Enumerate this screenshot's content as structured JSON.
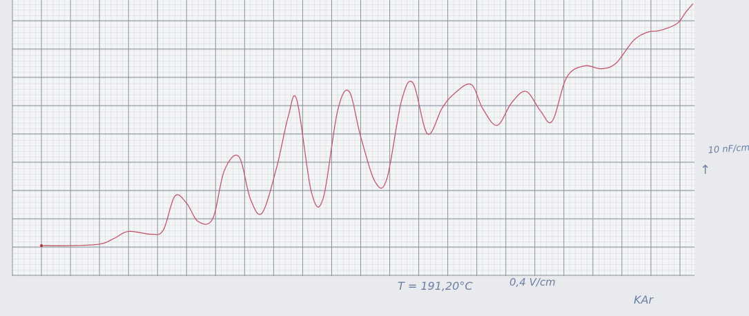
{
  "chart_data": {
    "type": "line",
    "title": "",
    "xlabel": "",
    "ylabel": "",
    "grid": true,
    "xlim": [
      0,
      23.5
    ],
    "ylim": [
      0,
      9.5
    ],
    "series": [
      {
        "color": "#c0566a",
        "x": [
          1.0,
          2.0,
          3.0,
          3.5,
          4.0,
          4.8,
          5.2,
          5.6,
          6.0,
          6.4,
          6.9,
          7.3,
          7.8,
          8.2,
          8.6,
          9.1,
          9.5,
          9.8,
          10.3,
          10.7,
          11.2,
          11.6,
          12.0,
          12.5,
          12.9,
          13.4,
          13.8,
          14.3,
          14.8,
          15.2,
          15.8,
          16.2,
          16.7,
          17.2,
          17.7,
          18.2,
          18.6,
          19.1,
          19.7,
          20.3,
          20.8,
          21.4,
          21.9,
          22.3,
          22.9,
          23.2,
          23.45
        ],
        "y": [
          0.05,
          0.05,
          0.1,
          0.3,
          0.55,
          0.45,
          0.6,
          1.8,
          1.55,
          0.9,
          1.0,
          2.7,
          3.2,
          1.7,
          1.2,
          2.8,
          4.6,
          5.2,
          1.95,
          1.7,
          4.8,
          5.5,
          3.9,
          2.3,
          2.4,
          5.15,
          5.8,
          4.0,
          4.9,
          5.4,
          5.75,
          4.9,
          4.3,
          5.1,
          5.5,
          4.8,
          4.45,
          6.0,
          6.4,
          6.3,
          6.5,
          7.3,
          7.6,
          7.65,
          7.9,
          8.3,
          8.6
        ]
      }
    ],
    "annotations": {
      "temperature": "T = 191,20°C",
      "x_scale": "0,4 V/cm",
      "y_scale": "10 nF/cm",
      "y_arrow": "↑",
      "initials": "KAr"
    }
  }
}
